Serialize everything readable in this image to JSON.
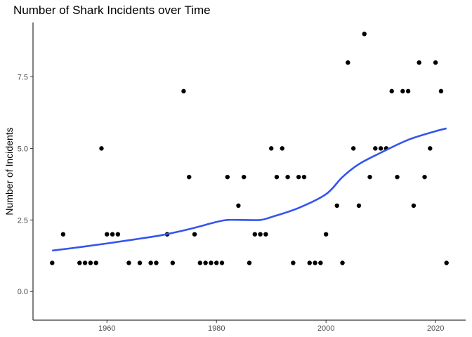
{
  "chart_data": {
    "type": "scatter",
    "title": "Number of Shark Incidents over Time",
    "xlabel": "",
    "ylabel": "Number of Incidents",
    "xlim": [
      1946.5,
      2025.5
    ],
    "ylim": [
      -1.0,
      9.4
    ],
    "xticks": [
      1960,
      1980,
      2000,
      2020
    ],
    "yticks": [
      0.0,
      2.5,
      5.0,
      7.5
    ],
    "ytick_labels": [
      "0.0",
      "2.5",
      "5.0",
      "7.5"
    ],
    "grid": false,
    "point_color": "#000000",
    "smooth_color": "#3355ee",
    "points": [
      [
        1950,
        1
      ],
      [
        1952,
        2
      ],
      [
        1955,
        1
      ],
      [
        1956,
        1
      ],
      [
        1957,
        1
      ],
      [
        1958,
        1
      ],
      [
        1959,
        5
      ],
      [
        1960,
        2
      ],
      [
        1961,
        2
      ],
      [
        1962,
        2
      ],
      [
        1964,
        1
      ],
      [
        1966,
        1
      ],
      [
        1968,
        1
      ],
      [
        1969,
        1
      ],
      [
        1971,
        2
      ],
      [
        1972,
        1
      ],
      [
        1974,
        7
      ],
      [
        1975,
        4
      ],
      [
        1976,
        2
      ],
      [
        1977,
        1
      ],
      [
        1978,
        1
      ],
      [
        1979,
        1
      ],
      [
        1980,
        1
      ],
      [
        1981,
        1
      ],
      [
        1982,
        4
      ],
      [
        1984,
        3
      ],
      [
        1985,
        4
      ],
      [
        1986,
        1
      ],
      [
        1987,
        2
      ],
      [
        1988,
        2
      ],
      [
        1989,
        2
      ],
      [
        1990,
        5
      ],
      [
        1991,
        4
      ],
      [
        1992,
        5
      ],
      [
        1993,
        4
      ],
      [
        1994,
        1
      ],
      [
        1995,
        4
      ],
      [
        1996,
        4
      ],
      [
        1997,
        1
      ],
      [
        1998,
        1
      ],
      [
        1999,
        1
      ],
      [
        2000,
        2
      ],
      [
        2002,
        3
      ],
      [
        2003,
        1
      ],
      [
        2004,
        8
      ],
      [
        2005,
        5
      ],
      [
        2006,
        3
      ],
      [
        2007,
        9
      ],
      [
        2008,
        4
      ],
      [
        2009,
        5
      ],
      [
        2010,
        5
      ],
      [
        2011,
        5
      ],
      [
        2012,
        7
      ],
      [
        2013,
        4
      ],
      [
        2014,
        7
      ],
      [
        2015,
        7
      ],
      [
        2016,
        3
      ],
      [
        2017,
        8
      ],
      [
        2018,
        4
      ],
      [
        2019,
        5
      ],
      [
        2020,
        8
      ],
      [
        2021,
        7
      ],
      [
        2022,
        1
      ]
    ],
    "smooth": {
      "x": [
        1950,
        1955,
        1960,
        1965,
        1970,
        1975,
        1980,
        1982,
        1985,
        1988,
        1990,
        1995,
        2000,
        2003,
        2006,
        2010,
        2015,
        2020,
        2022
      ],
      "y": [
        1.43,
        1.55,
        1.68,
        1.82,
        1.97,
        2.18,
        2.43,
        2.5,
        2.5,
        2.5,
        2.6,
        2.92,
        3.4,
        4.0,
        4.45,
        4.85,
        5.3,
        5.6,
        5.7
      ]
    }
  }
}
